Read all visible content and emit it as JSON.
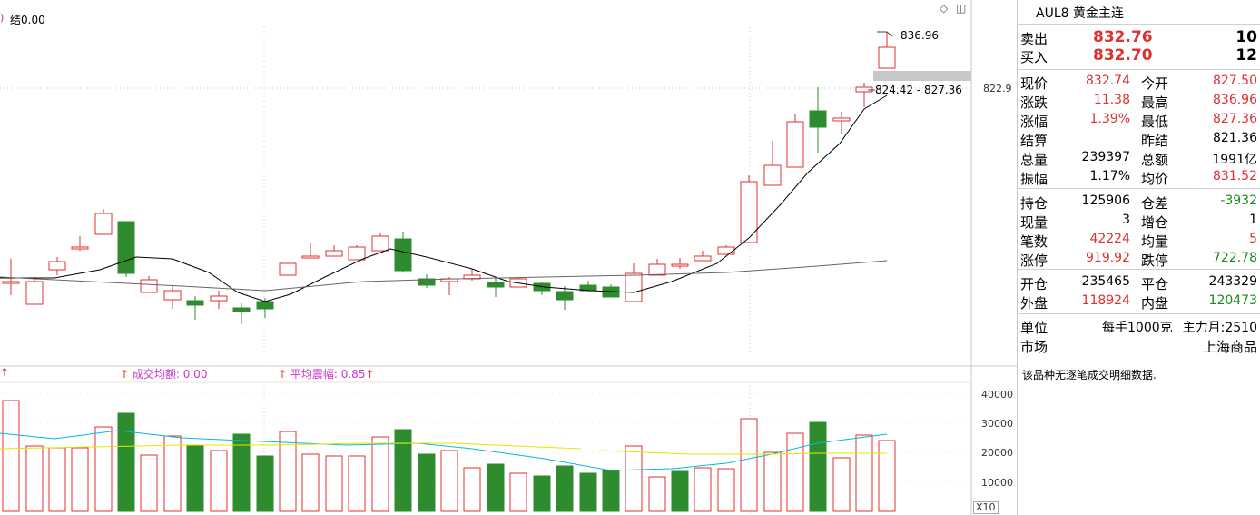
{
  "chart": {
    "top_label": "结0.00",
    "high_label": "836.96",
    "range_label": "824.42 - 827.36",
    "price_axis_label": "822.9",
    "vol_ticks": [
      "40000",
      "30000",
      "20000",
      "10000"
    ],
    "vol_unit": "X10",
    "indicators": [
      {
        "name": "成交均额: 0.00"
      },
      {
        "name": "平均震幅: 0.85"
      }
    ],
    "colors": {
      "up": "#e03030",
      "down": "#2e8b2e",
      "ma": "#000000",
      "ma2": "#666666",
      "vol_ma1": "#00bcd4",
      "vol_ma2": "#e6e600"
    }
  },
  "panel": {
    "title": "AUL8 黄金主连",
    "sell_label": "卖出",
    "sell_price": "832.76",
    "sell_qty": "10",
    "buy_label": "买入",
    "buy_price": "832.70",
    "buy_qty": "12",
    "stats": [
      {
        "l1": "现价",
        "v1": "832.74",
        "c1": "red",
        "l2": "今开",
        "v2": "827.50",
        "c2": "red"
      },
      {
        "l1": "涨跌",
        "v1": "11.38",
        "c1": "red",
        "l2": "最高",
        "v2": "836.96",
        "c2": "red"
      },
      {
        "l1": "涨幅",
        "v1": "1.39%",
        "c1": "red",
        "l2": "最低",
        "v2": "827.36",
        "c2": "red"
      },
      {
        "l1": "结算",
        "v1": "",
        "c1": "black",
        "l2": "昨结",
        "v2": "821.36",
        "c2": "black"
      },
      {
        "l1": "总量",
        "v1": "239397",
        "c1": "black",
        "l2": "总额",
        "v2": "1991亿",
        "c2": "black"
      },
      {
        "l1": "振幅",
        "v1": "1.17%",
        "c1": "black",
        "l2": "均价",
        "v2": "831.52",
        "c2": "red"
      }
    ],
    "stats2": [
      {
        "l1": "持仓",
        "v1": "125906",
        "c1": "black",
        "l2": "仓差",
        "v2": "-3932",
        "c2": "green"
      },
      {
        "l1": "现量",
        "v1": "3",
        "c1": "black",
        "l2": "增仓",
        "v2": "1",
        "c2": "black"
      },
      {
        "l1": "笔数",
        "v1": "42224",
        "c1": "red",
        "l2": "均量",
        "v2": "5",
        "c2": "red"
      },
      {
        "l1": "涨停",
        "v1": "919.92",
        "c1": "red",
        "l2": "跌停",
        "v2": "722.78",
        "c2": "green"
      }
    ],
    "stats3": [
      {
        "l1": "开仓",
        "v1": "235465",
        "c1": "black",
        "l2": "平仓",
        "v2": "243329",
        "c2": "black"
      },
      {
        "l1": "外盘",
        "v1": "118924",
        "c1": "red",
        "l2": "内盘",
        "v2": "120473",
        "c2": "green"
      }
    ],
    "unit_label": "单位",
    "unit_value": "每手1000克",
    "main_label": "主力月:2510",
    "market_label": "市场",
    "market_value": "上海商品",
    "note": "该品种无逐笔成交明细数据."
  }
}
